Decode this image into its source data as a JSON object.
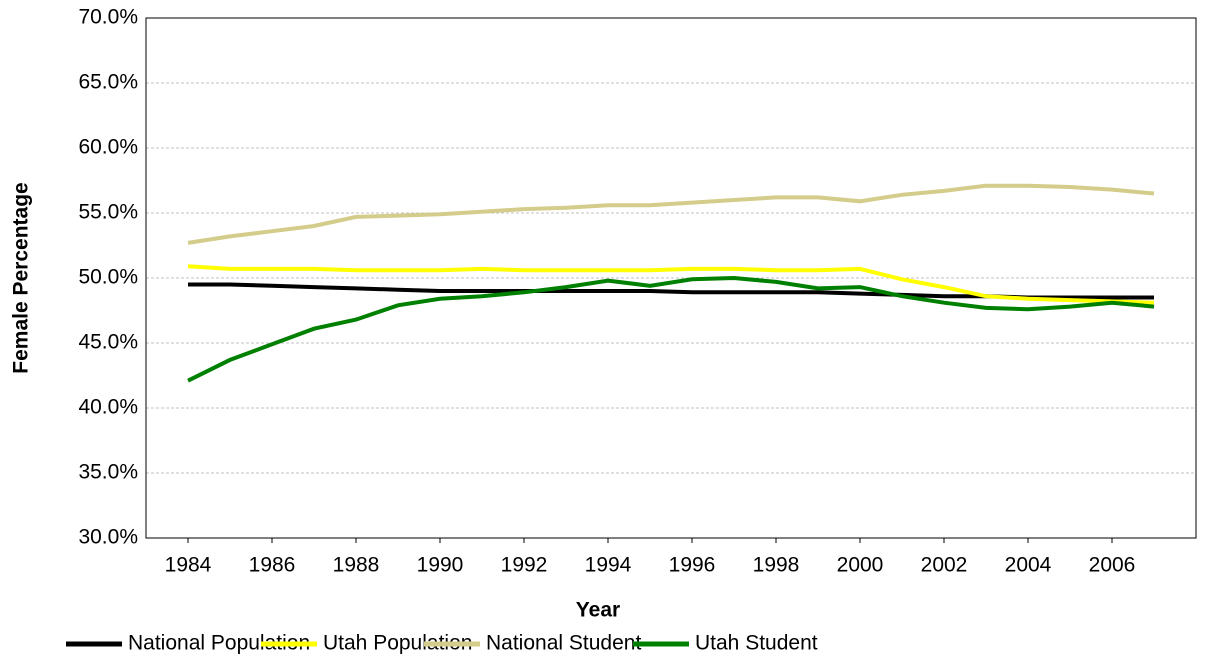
{
  "chart_data": {
    "type": "line",
    "x_label": "Year",
    "y_label": "Female Percentage",
    "x": [
      1984,
      1985,
      1986,
      1987,
      1988,
      1989,
      1990,
      1991,
      1992,
      1993,
      1994,
      1995,
      1996,
      1997,
      1998,
      1999,
      2000,
      2001,
      2002,
      2003,
      2004,
      2005,
      2006,
      2007
    ],
    "series": [
      {
        "name": "National Population",
        "color": "#000000",
        "values": [
          49.5,
          49.5,
          49.4,
          49.3,
          49.2,
          49.1,
          49.0,
          49.0,
          49.0,
          49.0,
          49.0,
          49.0,
          48.9,
          48.9,
          48.9,
          48.9,
          48.8,
          48.7,
          48.6,
          48.6,
          48.5,
          48.5,
          48.5,
          48.5
        ]
      },
      {
        "name": "Utah Population",
        "color": "#ffff00",
        "values": [
          50.9,
          50.7,
          50.7,
          50.7,
          50.6,
          50.6,
          50.6,
          50.7,
          50.6,
          50.6,
          50.6,
          50.6,
          50.7,
          50.7,
          50.6,
          50.6,
          50.7,
          49.9,
          49.3,
          48.6,
          48.4,
          48.3,
          48.2,
          48.1
        ]
      },
      {
        "name": "National Student",
        "color": "#d4cc8a",
        "values": [
          52.7,
          53.2,
          53.6,
          54.0,
          54.7,
          54.8,
          54.9,
          55.1,
          55.3,
          55.4,
          55.6,
          55.6,
          55.8,
          56.0,
          56.2,
          56.2,
          55.9,
          56.4,
          56.7,
          57.1,
          57.1,
          57.0,
          56.8,
          56.5
        ]
      },
      {
        "name": "Utah Student",
        "color": "#008000",
        "values": [
          42.1,
          43.7,
          44.9,
          46.1,
          46.8,
          47.9,
          48.4,
          48.6,
          48.9,
          49.3,
          49.8,
          49.4,
          49.9,
          50.0,
          49.7,
          49.2,
          49.3,
          48.6,
          48.1,
          47.7,
          47.6,
          47.8,
          48.1,
          47.8
        ]
      }
    ],
    "xlim": [
      1983,
      2008
    ],
    "xticks": [
      1984,
      1986,
      1988,
      1990,
      1992,
      1994,
      1996,
      1998,
      2000,
      2002,
      2004,
      2006
    ],
    "ylim": [
      30,
      70
    ],
    "yticks": [
      {
        "value": 30,
        "label": "30.0%"
      },
      {
        "value": 35,
        "label": "35.0%"
      },
      {
        "value": 40,
        "label": "40.0%"
      },
      {
        "value": 45,
        "label": "45.0%"
      },
      {
        "value": 50,
        "label": "50.0%"
      },
      {
        "value": 55,
        "label": "55.0%"
      },
      {
        "value": 60,
        "label": "60.0%"
      },
      {
        "value": 65,
        "label": "65.0%"
      },
      {
        "value": 70,
        "label": "70.0%"
      }
    ],
    "grid": true,
    "legend": "bottom"
  }
}
